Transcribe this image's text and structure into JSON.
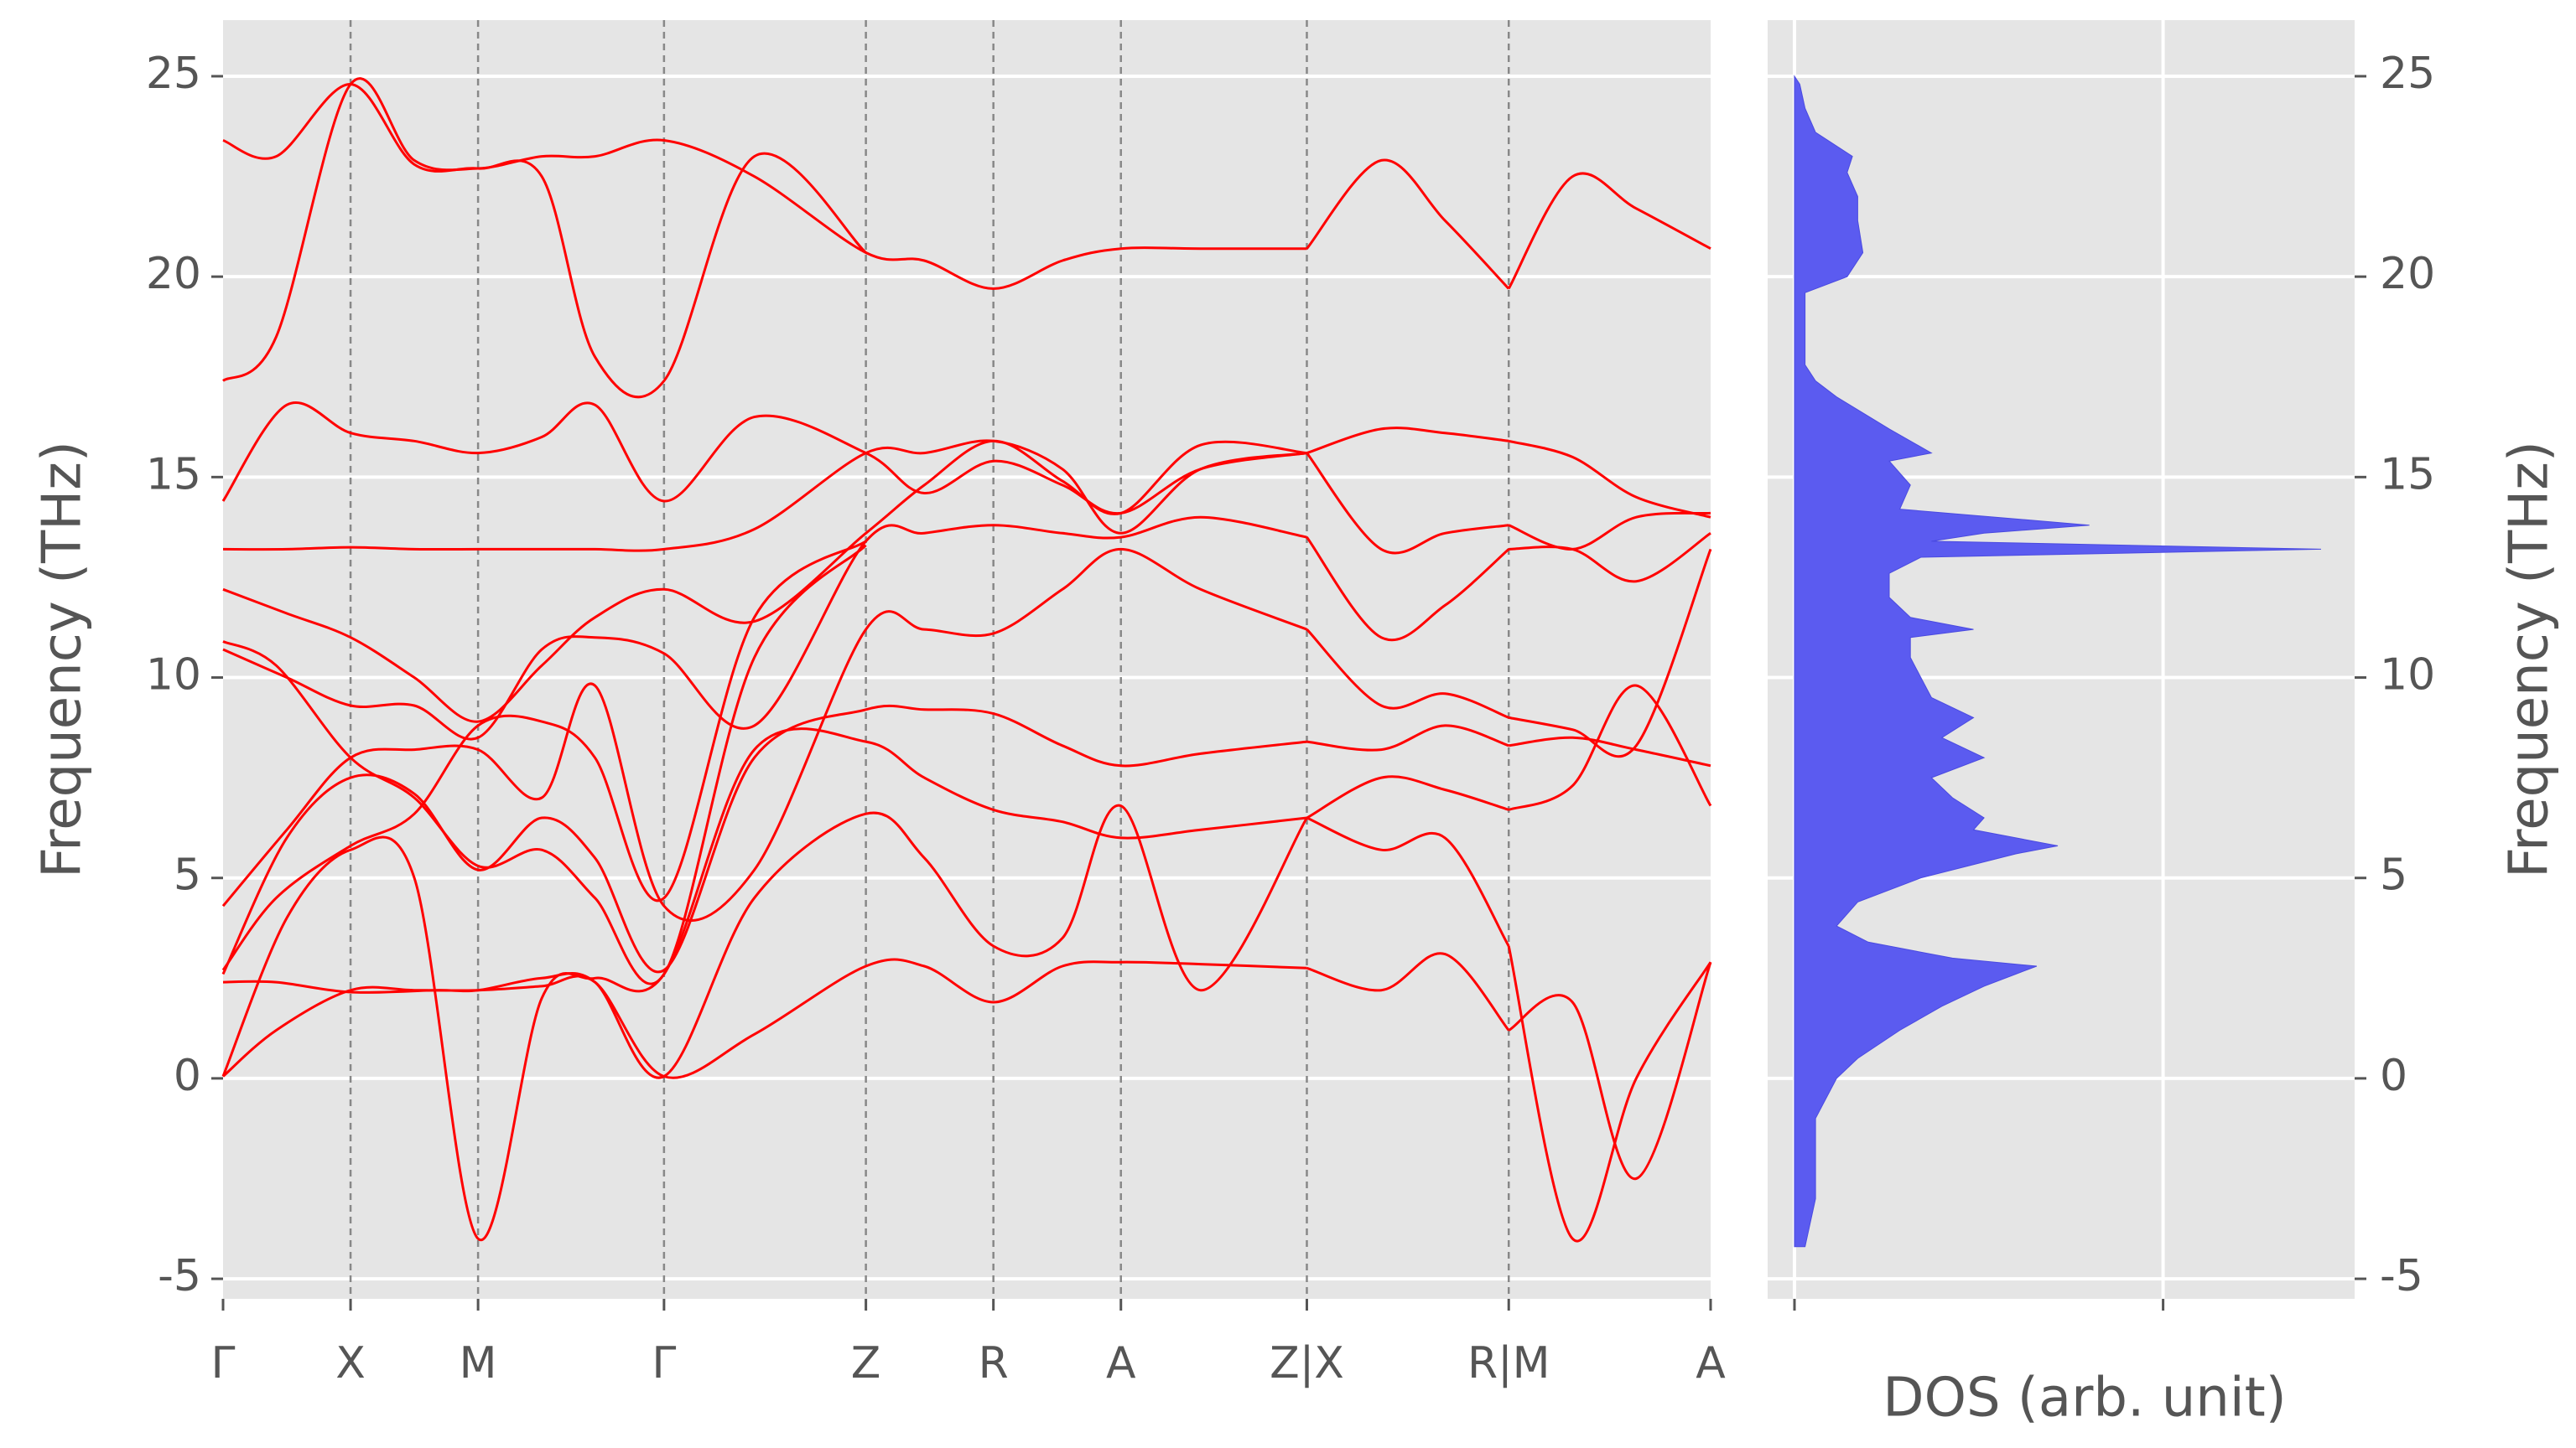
{
  "chart_data": [
    {
      "type": "line",
      "title": "",
      "xlabel": "",
      "ylabel": "Frequency (THz)",
      "ylim": [
        -5.5,
        26.4
      ],
      "yticks": [
        -5,
        0,
        5,
        10,
        15,
        20,
        25
      ],
      "ytick_labels": [
        "-5",
        "0",
        "5",
        "10",
        "15",
        "20",
        "25"
      ],
      "grid": true,
      "xlim": [
        0,
        14.0
      ],
      "high_symmetry_points": [
        {
          "label": "Γ",
          "x": 0
        },
        {
          "label": "X",
          "x": 1.2
        },
        {
          "label": "M",
          "x": 2.4
        },
        {
          "label": "Γ",
          "x": 4.15
        },
        {
          "label": "Z",
          "x": 6.05
        },
        {
          "label": "R",
          "x": 7.25
        },
        {
          "label": "A",
          "x": 8.45
        },
        {
          "label": "Z|X",
          "x": 10.2
        },
        {
          "label": "R|M",
          "x": 12.1
        },
        {
          "label": "A",
          "x": 14.0
        }
      ],
      "segments": [
        [
          0,
          10.2
        ],
        [
          10.2,
          12.1
        ],
        [
          12.1,
          14.0
        ]
      ],
      "line_color": "#ff0000",
      "series": [
        {
          "x": [
            0,
            0.5,
            1.2,
            1.8,
            2.4,
            3.0,
            3.5,
            4.15,
            5.0,
            6.05,
            6.6,
            7.25,
            7.9,
            8.45,
            9.2,
            10.2,
            10.9,
            11.5,
            12.1,
            12.7,
            13.3,
            14.0
          ],
          "y": [
            0.05,
            1.2,
            2.2,
            2.2,
            2.2,
            2.3,
            2.4,
            0.05,
            1.1,
            2.8,
            2.8,
            1.9,
            2.8,
            2.9,
            2.85,
            2.75,
            2.2,
            3.1,
            1.2,
            1.9,
            -2.5,
            2.9
          ]
        },
        {
          "x": [
            0,
            0.5,
            1.2,
            2.0,
            2.4,
            3.0,
            3.5,
            4.15,
            5.0,
            6.05,
            6.6,
            7.25,
            7.9,
            8.45,
            9.2,
            10.2,
            10.9,
            11.5,
            12.1,
            12.7,
            13.3,
            14.0
          ],
          "y": [
            2.4,
            2.4,
            2.15,
            2.2,
            2.2,
            2.5,
            2.4,
            0.05,
            4.5,
            6.6,
            5.5,
            3.3,
            3.5,
            6.8,
            2.2,
            6.5,
            5.7,
            6.0,
            3.3,
            -4.0,
            0.0,
            2.9
          ]
        },
        {
          "x": [
            0,
            0.6,
            1.2,
            1.8,
            2.4,
            3.0,
            3.5,
            4.15,
            5.0,
            6.05,
            6.6,
            7.25,
            7.9,
            8.45,
            9.2,
            10.2,
            10.9,
            11.5,
            12.1,
            12.7,
            13.3,
            14.0
          ],
          "y": [
            0.05,
            4.0,
            5.7,
            5.0,
            -4.0,
            2.0,
            2.5,
            2.6,
            8.2,
            8.4,
            7.5,
            6.7,
            6.4,
            6.0,
            6.2,
            6.5,
            7.5,
            7.2,
            6.7,
            7.3,
            9.8,
            6.8
          ]
        },
        {
          "x": [
            0,
            0.6,
            1.2,
            1.8,
            2.4,
            3.0,
            3.5,
            4.15,
            5.0,
            6.05,
            6.6,
            7.25,
            7.9,
            8.45,
            9.2,
            10.2,
            10.9,
            11.5,
            12.1,
            12.7,
            13.3,
            14.0
          ],
          "y": [
            2.6,
            6.0,
            7.5,
            7.1,
            5.2,
            6.5,
            5.5,
            2.7,
            8.0,
            9.2,
            9.2,
            9.1,
            8.3,
            7.8,
            8.1,
            8.4,
            8.2,
            8.8,
            8.3,
            8.5,
            8.2,
            7.8
          ]
        },
        {
          "x": [
            0,
            0.6,
            1.2,
            1.8,
            2.4,
            3.0,
            3.5,
            4.15,
            5.0,
            6.05,
            6.6,
            7.25,
            7.9,
            8.45,
            9.2,
            10.2,
            10.9,
            11.5,
            12.1,
            12.7,
            13.3,
            14.0
          ],
          "y": [
            4.3,
            6.2,
            8.0,
            8.2,
            8.2,
            7.0,
            9.8,
            4.3,
            5.2,
            11.2,
            11.2,
            11.1,
            12.2,
            13.2,
            12.2,
            11.2,
            9.3,
            9.6,
            9.0,
            8.7,
            8.3,
            13.2
          ]
        },
        {
          "x": [
            0,
            0.6,
            1.2,
            1.8,
            2.4,
            3.0,
            3.5,
            4.15,
            5.0,
            6.05,
            6.6,
            7.25,
            7.9,
            8.45,
            9.2,
            10.2,
            10.9,
            11.5,
            12.1,
            12.7,
            13.3,
            14.0
          ],
          "y": [
            10.7,
            10.0,
            9.3,
            9.3,
            8.5,
            10.7,
            11.0,
            10.6,
            8.8,
            13.4,
            13.6,
            13.8,
            13.6,
            13.5,
            14.0,
            13.5,
            11.0,
            11.8,
            13.2,
            13.2,
            12.4,
            13.6
          ]
        },
        {
          "x": [
            0,
            0.6,
            1.2,
            1.8,
            2.4,
            3.0,
            3.5,
            4.15,
            5.0,
            6.05,
            6.6,
            7.25,
            7.9,
            8.45,
            9.2,
            10.2,
            10.9,
            11.5,
            12.1,
            12.7,
            13.3,
            14.0
          ],
          "y": [
            12.2,
            11.6,
            11.0,
            10.0,
            8.9,
            10.3,
            11.5,
            12.2,
            11.4,
            13.6,
            14.8,
            15.9,
            14.9,
            14.1,
            15.8,
            15.6,
            13.2,
            13.6,
            13.8,
            13.2,
            14.0,
            14.1
          ]
        },
        {
          "x": [
            0,
            0.6,
            1.2,
            1.8,
            2.4,
            3.0,
            3.5,
            4.15,
            5.0,
            6.05,
            6.6,
            7.25,
            7.9,
            8.45,
            9.2,
            10.2,
            10.9,
            11.5,
            12.1,
            12.7,
            13.3,
            14.0
          ],
          "y": [
            13.2,
            13.2,
            13.25,
            13.2,
            13.2,
            13.2,
            13.2,
            13.2,
            13.7,
            15.6,
            15.6,
            15.9,
            15.2,
            13.6,
            15.2,
            15.6,
            16.2,
            16.1,
            15.9,
            15.5,
            14.5,
            14.0
          ]
        },
        {
          "x": [
            0,
            0.6,
            1.2,
            1.8,
            2.4,
            3.0,
            3.5,
            4.15,
            5.0,
            6.05,
            6.6,
            7.25,
            7.9,
            8.45,
            9.2,
            10.2
          ],
          "y": [
            14.4,
            16.8,
            16.1,
            15.9,
            15.6,
            16.0,
            16.8,
            14.4,
            16.5,
            15.6,
            14.6,
            15.4,
            14.8,
            14.1,
            15.2,
            15.6
          ]
        },
        {
          "x": [
            0,
            0.5,
            1.2,
            1.8,
            2.4,
            3.0,
            3.5,
            4.15,
            5.0,
            6.05,
            6.6,
            7.25,
            7.9,
            8.45,
            9.2,
            10.2,
            10.9,
            11.5,
            12.1,
            12.7,
            13.3,
            14.0
          ],
          "y": [
            17.4,
            18.5,
            24.8,
            22.9,
            22.7,
            23.0,
            23.0,
            23.4,
            22.5,
            20.6,
            20.4,
            19.7,
            20.4,
            20.7,
            20.7,
            20.7,
            22.9,
            21.4,
            19.7,
            22.5,
            21.7,
            20.7
          ]
        },
        {
          "x": [
            0,
            0.5,
            1.2,
            1.8,
            2.4,
            3.0,
            3.5,
            4.15,
            5.0,
            6.05
          ],
          "y": [
            23.4,
            23.0,
            24.8,
            22.8,
            22.7,
            22.5,
            18.0,
            17.4,
            23.0,
            20.6
          ]
        },
        {
          "x": [
            0,
            0.5,
            1.2,
            1.8,
            2.4,
            3.0,
            3.5,
            4.15,
            5.0,
            6.05
          ],
          "y": [
            10.9,
            10.3,
            8.0,
            7.0,
            5.3,
            5.7,
            4.5,
            2.6,
            10.5,
            13.3
          ]
        },
        {
          "x": [
            0,
            0.5,
            1.2,
            1.8,
            2.4,
            3.0,
            3.5,
            4.15,
            5.0,
            6.05
          ],
          "y": [
            2.7,
            4.5,
            5.8,
            6.6,
            8.8,
            8.9,
            8.0,
            4.5,
            11.5,
            13.4
          ]
        }
      ]
    },
    {
      "type": "area",
      "title": "",
      "xlabel": "DOS (arb. unit)",
      "ylabel": "Frequency (THz)",
      "ylim": [
        -5.5,
        26.4
      ],
      "yticks": [
        -5,
        0,
        5,
        10,
        15,
        20,
        25
      ],
      "ytick_labels": [
        "-5",
        "0",
        "5",
        "10",
        "15",
        "20",
        "25"
      ],
      "xticks_count": 2,
      "grid": true,
      "fill_color": "#5b5bf0",
      "dos": {
        "freq": [
          -4.2,
          -3.0,
          -1.0,
          0.0,
          0.5,
          1.2,
          1.8,
          2.3,
          2.6,
          2.8,
          3.0,
          3.4,
          3.8,
          4.4,
          5.0,
          5.6,
          5.8,
          6.2,
          6.5,
          7.0,
          7.5,
          8.0,
          8.5,
          9.0,
          9.5,
          10.0,
          10.5,
          11.0,
          11.2,
          11.5,
          12.0,
          12.6,
          13.0,
          13.2,
          13.4,
          13.6,
          13.8,
          14.2,
          14.8,
          15.4,
          15.6,
          16.2,
          17.0,
          17.4,
          17.8,
          19.6,
          20.0,
          20.6,
          21.4,
          22.0,
          22.6,
          23.0,
          23.6,
          24.2,
          24.8,
          25.0
        ],
        "density": [
          0.02,
          0.04,
          0.04,
          0.08,
          0.12,
          0.2,
          0.28,
          0.36,
          0.42,
          0.46,
          0.3,
          0.14,
          0.08,
          0.12,
          0.24,
          0.42,
          0.5,
          0.34,
          0.36,
          0.3,
          0.26,
          0.36,
          0.28,
          0.34,
          0.26,
          0.24,
          0.22,
          0.22,
          0.34,
          0.22,
          0.18,
          0.18,
          0.24,
          1.0,
          0.26,
          0.36,
          0.56,
          0.2,
          0.22,
          0.18,
          0.26,
          0.18,
          0.08,
          0.04,
          0.02,
          0.02,
          0.1,
          0.13,
          0.12,
          0.12,
          0.1,
          0.11,
          0.04,
          0.02,
          0.01,
          0.0
        ]
      }
    }
  ]
}
